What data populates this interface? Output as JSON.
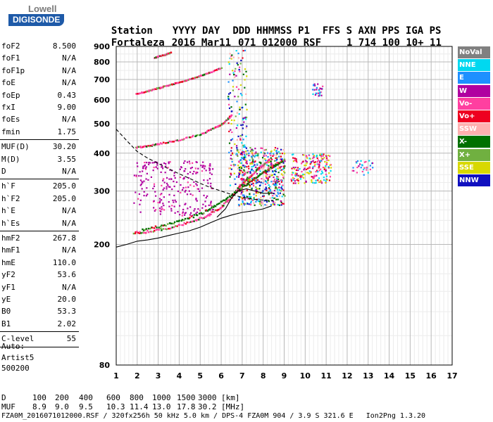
{
  "logo": {
    "line1": "Lowell",
    "line2": "DIGISONDE"
  },
  "header": {
    "row1": [
      "Station",
      "YYYY DAY",
      "DDD HHMMSS P1",
      "FFS S AXN PPS IGA PS"
    ],
    "row2": [
      "Fortaleza",
      "2016 Mar11",
      "071 012000 RSF",
      "1 714 100 10+ 11"
    ]
  },
  "params": [
    {
      "name": "foF2",
      "value": "8.500"
    },
    {
      "name": "foF1",
      "value": "N/A"
    },
    {
      "name": "foF1p",
      "value": "N/A"
    },
    {
      "name": "foE",
      "value": "N/A"
    },
    {
      "name": "foEp",
      "value": "0.43"
    },
    {
      "name": "fxI",
      "value": "9.00"
    },
    {
      "name": "foEs",
      "value": "N/A"
    },
    {
      "name": "fmin",
      "value": "1.75"
    },
    {
      "name": "MUF(D)",
      "value": "30.20"
    },
    {
      "name": "M(D)",
      "value": "3.55"
    },
    {
      "name": "D",
      "value": "N/A"
    },
    {
      "name": "h`F",
      "value": "205.0"
    },
    {
      "name": "h`F2",
      "value": "205.0"
    },
    {
      "name": "h`E",
      "value": "N/A"
    },
    {
      "name": "h`Es",
      "value": "N/A"
    },
    {
      "name": "hmF2",
      "value": "267.8"
    },
    {
      "name": "hmF1",
      "value": "N/A"
    },
    {
      "name": "hmE",
      "value": "110.0"
    },
    {
      "name": "yF2",
      "value": "53.6"
    },
    {
      "name": "yF1",
      "value": "N/A"
    },
    {
      "name": "yE",
      "value": "20.0"
    },
    {
      "name": "B0",
      "value": "53.3"
    },
    {
      "name": "B1",
      "value": "2.02"
    },
    {
      "name": "C-level",
      "value": "55"
    }
  ],
  "auto": {
    "label": "Auto:",
    "program": "Artist5",
    "version": "500200"
  },
  "legend": [
    {
      "label": "NoVal",
      "color": "#808080"
    },
    {
      "label": "NNE",
      "color": "#00d8f0"
    },
    {
      "label": "E",
      "color": "#1e90ff"
    },
    {
      "label": "W",
      "color": "#b000a0"
    },
    {
      "label": "Vo-",
      "color": "#ff3fa0"
    },
    {
      "label": "Vo+",
      "color": "#ee0020"
    },
    {
      "label": "SSW",
      "color": "#ffb0b0"
    },
    {
      "label": "X-",
      "color": "#007000"
    },
    {
      "label": "X+",
      "color": "#70b040"
    },
    {
      "label": "SSE",
      "color": "#d8d800"
    },
    {
      "label": "NNW",
      "color": "#1010c0"
    }
  ],
  "bottom": {
    "d_label": "D",
    "d_values": [
      "100",
      "200",
      "400",
      "600",
      "800",
      "1000",
      "1500",
      "3000",
      "[km]"
    ],
    "muf_label": "MUF",
    "muf_values": [
      "8.9",
      "9.0",
      "9.5",
      "10.3",
      "11.4",
      "13.0",
      "17.8",
      "30.2",
      "[MHz]"
    ],
    "footer": "FZA0M_2016071012000.RSF / 320fx256h 50 kHz 5.0 km / DPS-4 FZA0M 904 / 3.9 S 321.6 E   Ion2Png 1.3.20"
  },
  "chart_data": {
    "type": "scatter",
    "title": "",
    "xlabel": "",
    "ylabel": "",
    "xlim": [
      1,
      17
    ],
    "ylim": [
      80,
      900
    ],
    "x_ticks": [
      1,
      2,
      3,
      4,
      5,
      6,
      7,
      8,
      9,
      10,
      11,
      12,
      13,
      14,
      15,
      16,
      17
    ],
    "y_ticks": [
      80,
      200,
      300,
      400,
      500,
      600,
      700,
      800,
      900
    ],
    "grid": true,
    "x_scale": "linear",
    "y_scale": "log",
    "traces": [
      {
        "name": "F2 O-mode trace",
        "color": "#ff3fa0",
        "points": [
          [
            1.8,
            220
          ],
          [
            2.5,
            222
          ],
          [
            3.5,
            228
          ],
          [
            4.5,
            238
          ],
          [
            5.3,
            250
          ],
          [
            5.9,
            265
          ],
          [
            6.4,
            285
          ],
          [
            6.8,
            310
          ],
          [
            7.2,
            330
          ],
          [
            7.6,
            350
          ],
          [
            8.0,
            370
          ],
          [
            8.3,
            385
          ]
        ]
      },
      {
        "name": "F2 X-mode trace",
        "color": "#007000",
        "points": [
          [
            2.2,
            225
          ],
          [
            3.2,
            232
          ],
          [
            4.2,
            242
          ],
          [
            5.2,
            258
          ],
          [
            6.0,
            278
          ],
          [
            6.7,
            300
          ],
          [
            7.3,
            322
          ],
          [
            7.9,
            345
          ],
          [
            8.5,
            365
          ],
          [
            8.9,
            380
          ]
        ]
      },
      {
        "name": "2F echo",
        "color": "#ff3fa0",
        "points": [
          [
            1.9,
            420
          ],
          [
            2.5,
            425
          ],
          [
            3.0,
            432
          ],
          [
            4.0,
            445
          ],
          [
            5.0,
            465
          ],
          [
            5.6,
            485
          ],
          [
            6.1,
            505
          ],
          [
            6.5,
            540
          ]
        ]
      },
      {
        "name": "3F echo",
        "color": "#ff3fa0",
        "points": [
          [
            1.9,
            630
          ],
          [
            2.5,
            645
          ],
          [
            3.0,
            660
          ],
          [
            3.5,
            675
          ],
          [
            4.0,
            690
          ],
          [
            4.5,
            705
          ],
          [
            5.0,
            725
          ],
          [
            5.5,
            745
          ],
          [
            6.0,
            770
          ]
        ]
      },
      {
        "name": "4F echo",
        "color": "#ff3fa0",
        "points": [
          [
            2.8,
            830
          ],
          [
            3.0,
            840
          ],
          [
            3.3,
            850
          ],
          [
            3.6,
            865
          ]
        ]
      }
    ],
    "scatter_clusters": [
      {
        "name": "spread F",
        "x": [
          6.8,
          9.0
        ],
        "y": [
          270,
          420
        ]
      },
      {
        "name": "spread F high",
        "x": [
          9.3,
          11.2
        ],
        "y": [
          320,
          400
        ]
      },
      {
        "name": "W echoes",
        "x": [
          1.8,
          5.6
        ],
        "y": [
          250,
          380
        ]
      },
      {
        "name": "vertical streak",
        "x": [
          6.3,
          7.2
        ],
        "y": [
          300,
          880
        ]
      },
      {
        "name": "isolated",
        "x": [
          10.3,
          10.8
        ],
        "y": [
          620,
          680
        ]
      },
      {
        "name": "isolated right",
        "x": [
          12.2,
          13.2
        ],
        "y": [
          340,
          380
        ]
      }
    ],
    "profile": [
      [
        1.0,
        196
      ],
      [
        1.5,
        200
      ],
      [
        2.0,
        205
      ],
      [
        2.5,
        207
      ],
      [
        3.0,
        210
      ],
      [
        3.5,
        214
      ],
      [
        4.0,
        218
      ],
      [
        4.5,
        222
      ],
      [
        5.0,
        228
      ],
      [
        5.5,
        236
      ],
      [
        6.0,
        244
      ],
      [
        6.5,
        250
      ],
      [
        7.0,
        255
      ],
      [
        7.5,
        258
      ],
      [
        8.0,
        262
      ],
      [
        8.4,
        268
      ]
    ],
    "muf_curve": [
      [
        1.0,
        480
      ],
      [
        1.5,
        440
      ],
      [
        2.0,
        405
      ],
      [
        2.5,
        385
      ],
      [
        3.0,
        370
      ],
      [
        3.5,
        355
      ],
      [
        4.0,
        342
      ],
      [
        4.5,
        330
      ],
      [
        5.0,
        318
      ],
      [
        5.5,
        308
      ],
      [
        6.0,
        300
      ],
      [
        6.5,
        292
      ],
      [
        7.0,
        286
      ],
      [
        7.5,
        282
      ],
      [
        8.0,
        280
      ],
      [
        8.5,
        279
      ]
    ],
    "hF_curve": [
      [
        5.8,
        246
      ],
      [
        6.2,
        262
      ],
      [
        6.5,
        285
      ],
      [
        6.8,
        300
      ],
      [
        7.2,
        305
      ],
      [
        7.6,
        300
      ],
      [
        8.0,
        295
      ],
      [
        8.5,
        295
      ]
    ]
  }
}
